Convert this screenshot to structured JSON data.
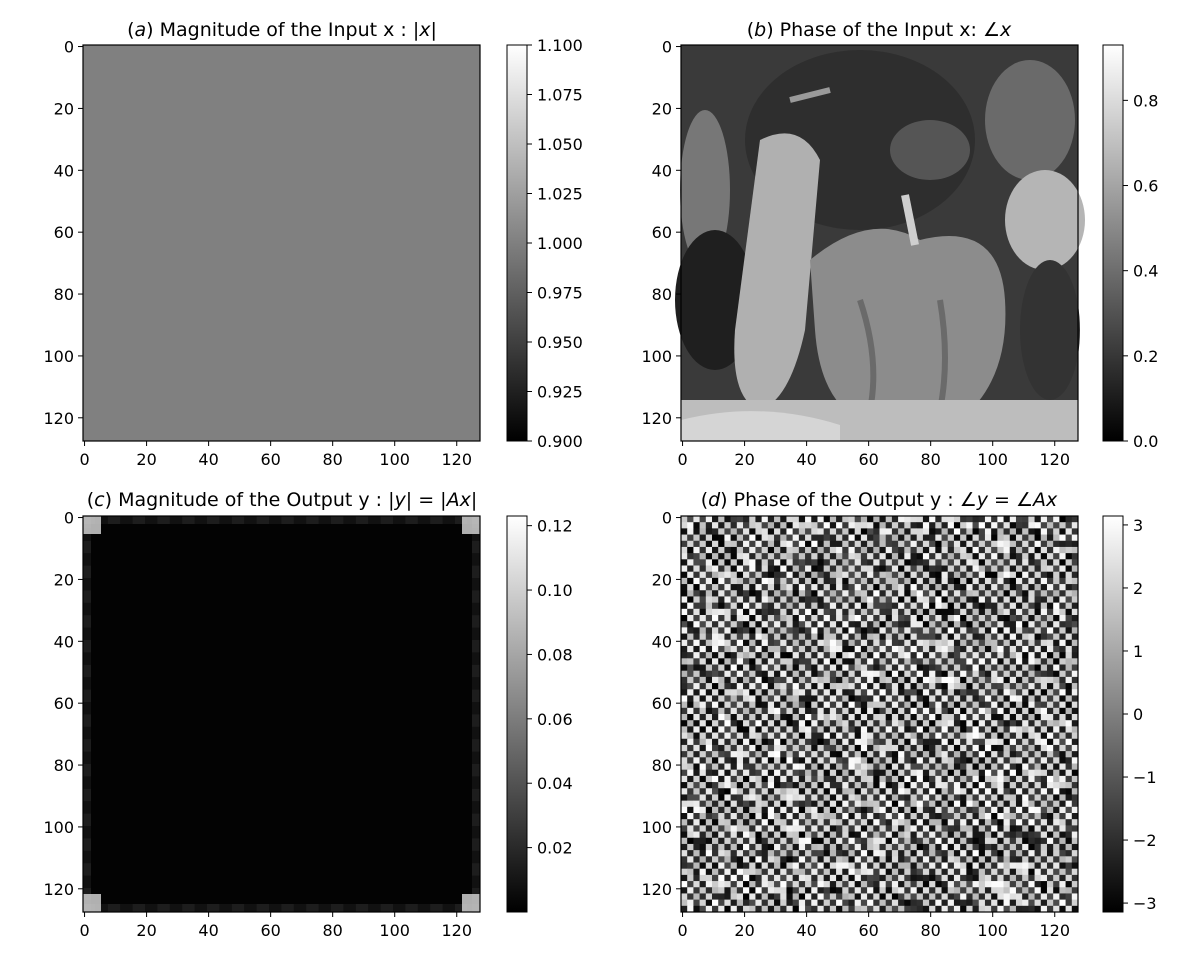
{
  "chart_data": [
    {
      "type": "heatmap",
      "title": "(a) Magnitude of the Input x : |x|",
      "title_parts": [
        "(",
        "a",
        ") Magnitude of the Input x : |",
        "x",
        "|"
      ],
      "image_size": [
        128,
        128
      ],
      "image_description": "constant magnitude field",
      "fill_value": 1.0,
      "x_ticks": [
        "0",
        "20",
        "40",
        "60",
        "80",
        "100",
        "120"
      ],
      "y_ticks": [
        "0",
        "20",
        "40",
        "60",
        "80",
        "100",
        "120"
      ],
      "colorbar": {
        "min": 0.9,
        "max": 1.1,
        "ticks": [
          "1.100",
          "1.075",
          "1.050",
          "1.025",
          "1.000",
          "0.975",
          "0.950",
          "0.925",
          "0.900"
        ],
        "tick_values": [
          1.1,
          1.075,
          1.05,
          1.025,
          1.0,
          0.975,
          0.95,
          0.925,
          0.9
        ]
      },
      "colormap": "gray"
    },
    {
      "type": "heatmap",
      "title": "(b) Phase of the Input x: ∠x",
      "title_parts": [
        "(",
        "b",
        ") Phase of the Input x: ",
        "∠x",
        ""
      ],
      "image_size": [
        128,
        128
      ],
      "image_description": "grayscale peppers photograph encoded as phase",
      "x_ticks": [
        "0",
        "20",
        "40",
        "60",
        "80",
        "100",
        "120"
      ],
      "y_ticks": [
        "0",
        "20",
        "40",
        "60",
        "80",
        "100",
        "120"
      ],
      "colorbar": {
        "min": 0.0,
        "max": 0.93,
        "ticks": [
          "0.8",
          "0.6",
          "0.4",
          "0.2",
          "0.0"
        ],
        "tick_values": [
          0.8,
          0.6,
          0.4,
          0.2,
          0.0
        ]
      },
      "colormap": "gray"
    },
    {
      "type": "heatmap",
      "title": "(c) Magnitude of the Output y : |y| = |Ax|",
      "title_parts": [
        "(",
        "c",
        ") Magnitude of the Output y : |",
        "y",
        "| = |",
        "Ax",
        "|"
      ],
      "image_size": [
        128,
        128
      ],
      "image_description": "near-zero field with brighter corners and faint edge periodicity",
      "x_ticks": [
        "0",
        "20",
        "40",
        "60",
        "80",
        "100",
        "120"
      ],
      "y_ticks": [
        "0",
        "20",
        "40",
        "60",
        "80",
        "100",
        "120"
      ],
      "colorbar": {
        "min": 0.0,
        "max": 0.123,
        "ticks": [
          "0.12",
          "0.10",
          "0.08",
          "0.06",
          "0.04",
          "0.02"
        ],
        "tick_values": [
          0.12,
          0.1,
          0.08,
          0.06,
          0.04,
          0.02
        ]
      },
      "colormap": "gray"
    },
    {
      "type": "heatmap",
      "title": "(d) Phase of the Output y : ∠y = ∠Ax",
      "title_parts": [
        "(",
        "d",
        ") Phase of the Output y : ",
        "∠y",
        " = ",
        "∠Ax",
        ""
      ],
      "image_size": [
        128,
        128
      ],
      "image_description": "high-frequency wrapped phase pattern with diagonal structure",
      "x_ticks": [
        "0",
        "20",
        "40",
        "60",
        "80",
        "100",
        "120"
      ],
      "y_ticks": [
        "0",
        "20",
        "40",
        "60",
        "80",
        "100",
        "120"
      ],
      "colorbar": {
        "min": -3.1416,
        "max": 3.1416,
        "ticks": [
          "3",
          "2",
          "1",
          "0",
          "−1",
          "−2",
          "−3"
        ],
        "tick_values": [
          3,
          2,
          1,
          0,
          -1,
          -2,
          -3
        ]
      },
      "colormap": "gray"
    }
  ]
}
